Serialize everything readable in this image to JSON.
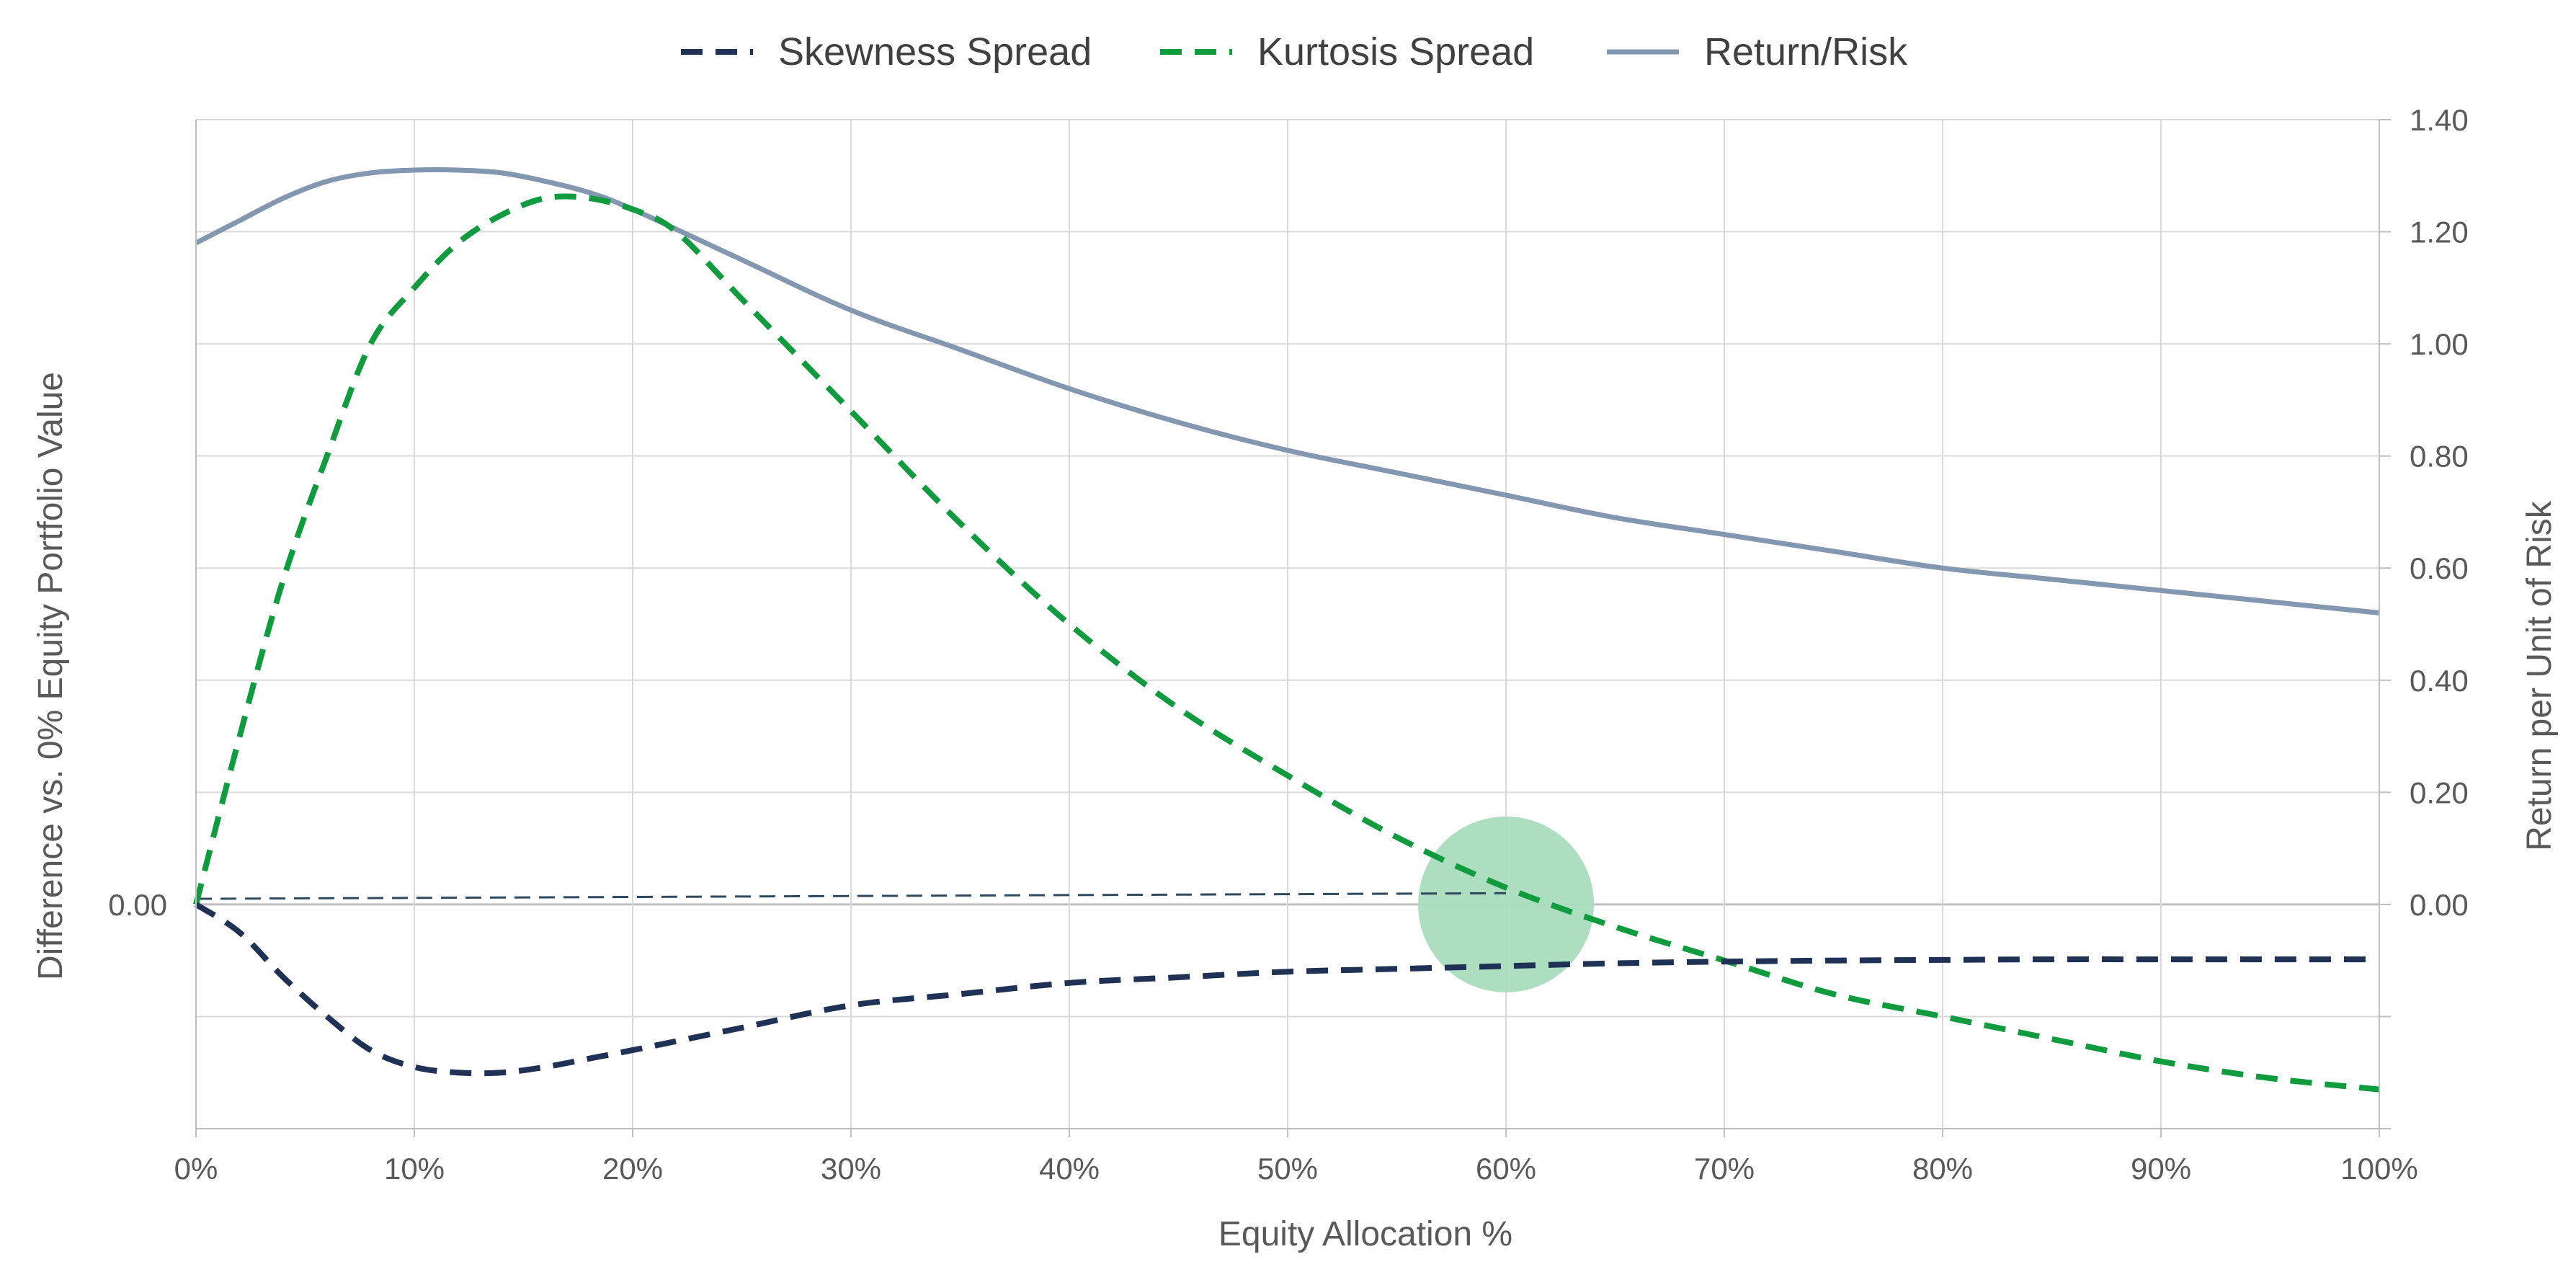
{
  "chart_data": {
    "type": "line",
    "xlabel": "Equity Allocation %",
    "ylabel_left": "Difference vs. 0% Equity Portfolio Value",
    "ylabel_right": "Return per Unit of Risk",
    "x_ticks": [
      "0%",
      "10%",
      "20%",
      "30%",
      "40%",
      "50%",
      "60%",
      "70%",
      "80%",
      "90%",
      "100%"
    ],
    "xlim": [
      0,
      100
    ],
    "left_ticks": [
      "0.00"
    ],
    "right_ticks": [
      "0.00",
      "0.20",
      "0.40",
      "0.60",
      "0.80",
      "1.00",
      "1.20",
      "1.40"
    ],
    "ylim": [
      -0.4,
      1.4
    ],
    "grid": true,
    "legend_position": "top-center",
    "series": [
      {
        "name": "Skewness Spread",
        "style": "dashed",
        "color": "#1f3155",
        "x": [
          0,
          2,
          4,
          6,
          8,
          10,
          12,
          14,
          16,
          18,
          20,
          25,
          30,
          35,
          40,
          45,
          50,
          55,
          60,
          65,
          70,
          75,
          80,
          85,
          90,
          95,
          100
        ],
        "values": [
          0,
          -0.05,
          -0.13,
          -0.2,
          -0.26,
          -0.29,
          -0.3,
          -0.3,
          -0.29,
          -0.275,
          -0.26,
          -0.22,
          -0.18,
          -0.16,
          -0.14,
          -0.13,
          -0.12,
          -0.115,
          -0.11,
          -0.105,
          -0.102,
          -0.1,
          -0.099,
          -0.098,
          -0.098,
          -0.098,
          -0.098
        ]
      },
      {
        "name": "Kurtosis Spread",
        "style": "dashed",
        "color": "#0f9b3e",
        "x": [
          0,
          2,
          4,
          6,
          8,
          10,
          12,
          14,
          16,
          18,
          20,
          22,
          25,
          30,
          35,
          40,
          45,
          50,
          55,
          60,
          65,
          70,
          75,
          80,
          85,
          90,
          95,
          100
        ],
        "values": [
          0,
          0.3,
          0.58,
          0.8,
          1.0,
          1.1,
          1.18,
          1.23,
          1.26,
          1.26,
          1.24,
          1.2,
          1.08,
          0.88,
          0.68,
          0.5,
          0.35,
          0.23,
          0.12,
          0.03,
          -0.04,
          -0.1,
          -0.16,
          -0.2,
          -0.24,
          -0.28,
          -0.31,
          -0.33
        ]
      },
      {
        "name": "Return/Risk",
        "style": "solid",
        "color": "#8497b0",
        "x": [
          0,
          2,
          4,
          6,
          8,
          10,
          12,
          14,
          16,
          18,
          20,
          25,
          30,
          35,
          40,
          45,
          50,
          55,
          60,
          65,
          70,
          75,
          80,
          85,
          90,
          95,
          100
        ],
        "values": [
          1.18,
          1.22,
          1.26,
          1.29,
          1.305,
          1.31,
          1.31,
          1.305,
          1.29,
          1.27,
          1.24,
          1.15,
          1.06,
          0.99,
          0.92,
          0.86,
          0.81,
          0.77,
          0.73,
          0.69,
          0.66,
          0.63,
          0.6,
          0.58,
          0.56,
          0.54,
          0.52
        ]
      }
    ],
    "annotations": {
      "reference_line": {
        "x_start": 0,
        "x_end": 60,
        "y_start": 0.01,
        "y_end": 0.02,
        "color": "#2e4a5e"
      },
      "highlight_circle": {
        "x": 60,
        "y": 0.0,
        "color": "#a9dcbc"
      }
    }
  }
}
